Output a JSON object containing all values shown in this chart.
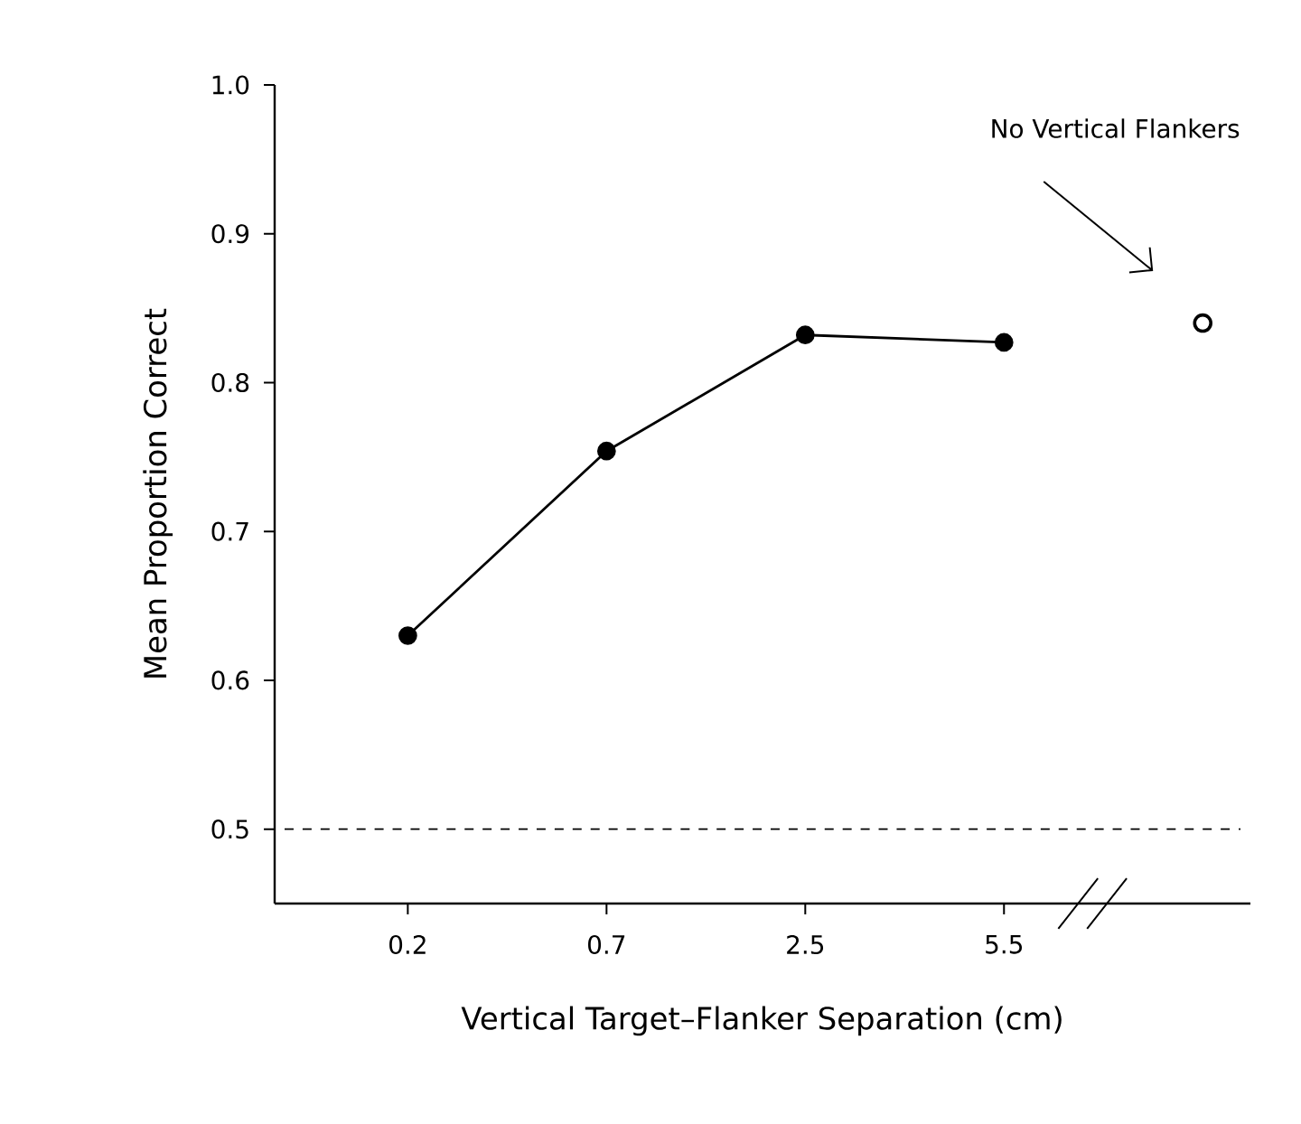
{
  "chart_data": {
    "type": "line",
    "xlabel": "Vertical Target–Flanker Separation (cm)",
    "ylabel": "Mean Proportion Correct",
    "categories": [
      "0.2",
      "0.7",
      "2.5",
      "5.5",
      null
    ],
    "series": [
      {
        "color": "#000000",
        "values": [
          0.63,
          0.754,
          0.832,
          0.827,
          null
        ]
      },
      {
        "type": "scatter",
        "color": "#000000",
        "values": [
          null,
          null,
          null,
          null,
          0.84
        ]
      }
    ],
    "ylim": [
      0.45,
      1.0
    ],
    "yticks": [
      0.5,
      0.6,
      0.7,
      0.8,
      0.9,
      {
        "value": 1.0,
        "label": "1.0"
      }
    ],
    "marker": "circle",
    "grid": false,
    "ref_lines": [
      {
        "axis": "y",
        "value": 0.5,
        "line_style": "dashed",
        "color": "#000000"
      }
    ],
    "annotations": [
      "No Vertical Flankers"
    ]
  }
}
